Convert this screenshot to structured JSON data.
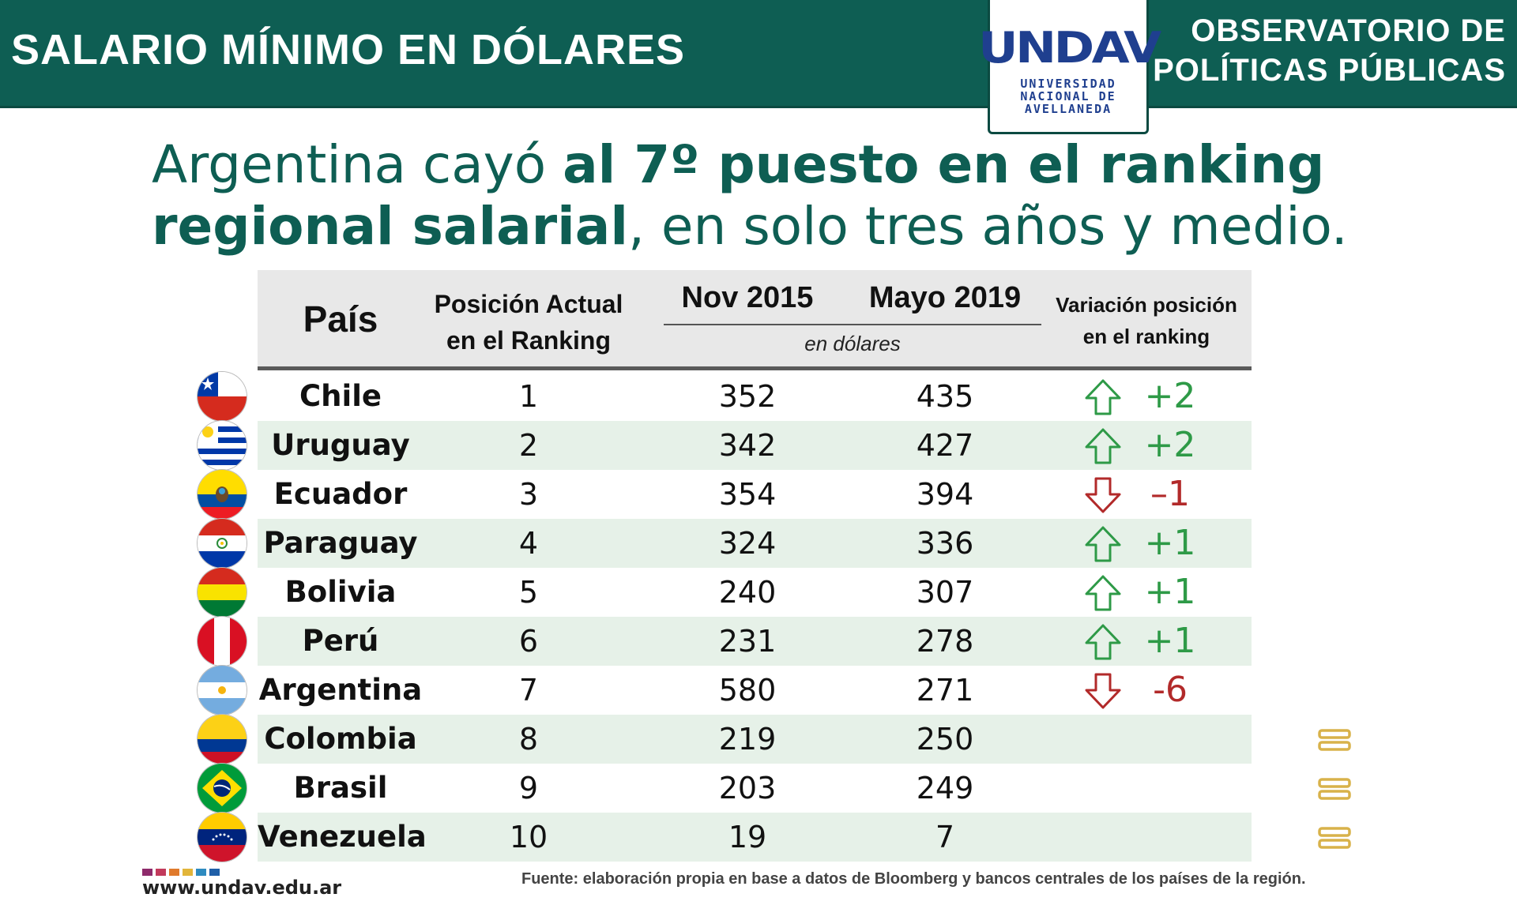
{
  "header": {
    "title": "SALARIO MÍNIMO EN DÓLARES",
    "logo_mark": "UNDAV",
    "logo_lines": [
      "UNIVERSIDAD",
      "NACIONAL DE",
      "AVELLANEDA"
    ],
    "observatorio": [
      "OBSERVATORIO DE",
      "POLÍTICAS PÚBLICAS"
    ],
    "colors": {
      "header_bg": "#0e5e53",
      "logo_blue": "#1f3f8f"
    }
  },
  "headline": {
    "part1": "Argentina cayó ",
    "bold1": "al 7º puesto en el ranking",
    "bold2": "regional salarial",
    "part2": ", en solo tres años y medio."
  },
  "table": {
    "headers": {
      "pais": "País",
      "posicion": [
        "Posición Actual",
        "en el Ranking"
      ],
      "nov": "Nov 2015",
      "mayo": "Mayo 2019",
      "unidad": "en dólares",
      "variacion": [
        "Variación posición",
        "en el ranking"
      ]
    },
    "rows": [
      {
        "pais": "Chile",
        "posicion": "1",
        "nov": "352",
        "mayo": "435",
        "trend": "up",
        "variacion": "+2",
        "flag": "chile-flag-icon"
      },
      {
        "pais": "Uruguay",
        "posicion": "2",
        "nov": "342",
        "mayo": "427",
        "trend": "up",
        "variacion": "+2",
        "flag": "uruguay-flag-icon"
      },
      {
        "pais": "Ecuador",
        "posicion": "3",
        "nov": "354",
        "mayo": "394",
        "trend": "down",
        "variacion": "–1",
        "flag": "ecuador-flag-icon"
      },
      {
        "pais": "Paraguay",
        "posicion": "4",
        "nov": "324",
        "mayo": "336",
        "trend": "up",
        "variacion": "+1",
        "flag": "paraguay-flag-icon"
      },
      {
        "pais": "Bolivia",
        "posicion": "5",
        "nov": "240",
        "mayo": "307",
        "trend": "up",
        "variacion": "+1",
        "flag": "bolivia-flag-icon"
      },
      {
        "pais": "Perú",
        "posicion": "6",
        "nov": "231",
        "mayo": "278",
        "trend": "up",
        "variacion": "+1",
        "flag": "peru-flag-icon"
      },
      {
        "pais": "Argentina",
        "posicion": "7",
        "nov": "580",
        "mayo": "271",
        "trend": "down",
        "variacion": "-6",
        "flag": "argentina-flag-icon"
      },
      {
        "pais": "Colombia",
        "posicion": "8",
        "nov": "219",
        "mayo": "250",
        "trend": "equal",
        "variacion": "",
        "flag": "colombia-flag-icon"
      },
      {
        "pais": "Brasil",
        "posicion": "9",
        "nov": "203",
        "mayo": "249",
        "trend": "equal",
        "variacion": "",
        "flag": "brasil-flag-icon"
      },
      {
        "pais": "Venezuela",
        "posicion": "10",
        "nov": "19",
        "mayo": "7",
        "trend": "equal",
        "variacion": "",
        "flag": "venezuela-flag-icon"
      }
    ],
    "colors": {
      "up": "#2e9a47",
      "down": "#b22a2a",
      "equal": "#d8b24a",
      "alt_row": "#e6f1e8"
    }
  },
  "footer": {
    "url": "www.undav.edu.ar",
    "source": "Fuente: elaboración propia en base a datos de Bloomberg y bancos centrales de los países de la región."
  }
}
